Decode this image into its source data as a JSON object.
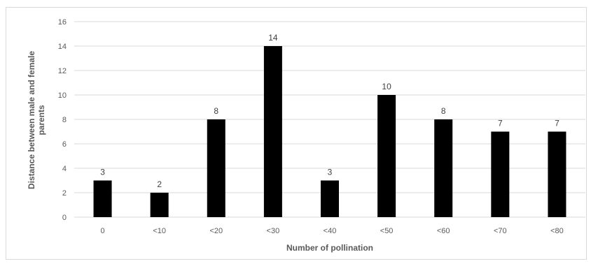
{
  "chart_data": {
    "type": "bar",
    "title": "",
    "xlabel": "Number of pollination",
    "ylabel": "Distance between male and female parents",
    "categories": [
      "0",
      "<10",
      "<20",
      "<30",
      "<40",
      "<50",
      "<60",
      "<70",
      "<80"
    ],
    "values": [
      3,
      2,
      8,
      14,
      3,
      10,
      8,
      7,
      7
    ],
    "ylim": [
      0,
      16
    ],
    "yticks": [
      0,
      2,
      4,
      6,
      8,
      10,
      12,
      14,
      16
    ],
    "grid": true,
    "legend": "none",
    "data_labels": true,
    "colors": {
      "bar": "#000000",
      "grid": "#d9d9d9",
      "text": "#595959"
    }
  }
}
